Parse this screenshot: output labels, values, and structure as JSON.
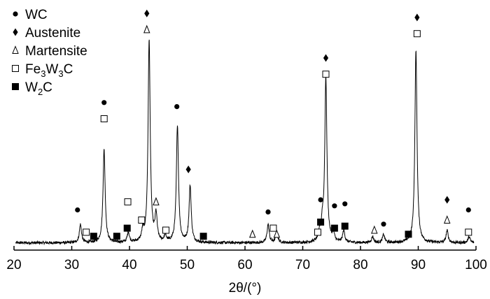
{
  "chart_data": {
    "type": "line",
    "xlabel": "2θ/(°)",
    "x_range": [
      20,
      100
    ],
    "x_ticks": [
      20,
      30,
      40,
      50,
      60,
      70,
      80,
      90,
      100
    ],
    "y_ticks_shown": false,
    "grid": false,
    "legend_position": "top-left",
    "legend": [
      {
        "phase": "wc",
        "label": "WC",
        "marker": "circle"
      },
      {
        "phase": "austenite",
        "label": "Austenite",
        "marker": "diamond"
      },
      {
        "phase": "martensite",
        "label": "Martensite",
        "marker": "triangle-open"
      },
      {
        "phase": "fe3w3c",
        "label_parts": [
          "Fe",
          "3",
          "W",
          "3",
          "C"
        ],
        "marker": "square-open"
      },
      {
        "phase": "w2c",
        "label_parts": [
          "W",
          "2",
          "C"
        ],
        "marker": "square-filled"
      }
    ],
    "baseline_intensity": 1.5,
    "peaks": [
      {
        "x": 31.5,
        "intensity": 9
      },
      {
        "x": 35.6,
        "intensity": 46
      },
      {
        "x": 39.8,
        "intensity": 5
      },
      {
        "x": 42.3,
        "intensity": 5
      },
      {
        "x": 43.4,
        "intensity": 100
      },
      {
        "x": 44.6,
        "intensity": 13
      },
      {
        "x": 46.2,
        "intensity": 3
      },
      {
        "x": 48.3,
        "intensity": 58
      },
      {
        "x": 50.5,
        "intensity": 28
      },
      {
        "x": 64.0,
        "intensity": 9
      },
      {
        "x": 65.5,
        "intensity": 5
      },
      {
        "x": 72.9,
        "intensity": 4
      },
      {
        "x": 73.4,
        "intensity": 8
      },
      {
        "x": 74.0,
        "intensity": 81
      },
      {
        "x": 75.3,
        "intensity": 4
      },
      {
        "x": 77.1,
        "intensity": 6
      },
      {
        "x": 82.1,
        "intensity": 3
      },
      {
        "x": 84.0,
        "intensity": 4
      },
      {
        "x": 89.6,
        "intensity": 95
      },
      {
        "x": 95.0,
        "intensity": 6
      },
      {
        "x": 98.8,
        "intensity": 3
      }
    ],
    "markers": [
      {
        "x": 31.0,
        "intensity": 15,
        "phase": "wc"
      },
      {
        "x": 32.5,
        "intensity": 4,
        "phase": "fe3w3c"
      },
      {
        "x": 33.8,
        "intensity": 2,
        "phase": "w2c"
      },
      {
        "x": 35.6,
        "intensity": 60,
        "phase": "fe3w3c"
      },
      {
        "x": 35.6,
        "intensity": 68,
        "phase": "wc"
      },
      {
        "x": 37.8,
        "intensity": 2,
        "phase": "w2c"
      },
      {
        "x": 39.6,
        "intensity": 6,
        "phase": "w2c"
      },
      {
        "x": 39.7,
        "intensity": 19,
        "phase": "fe3w3c"
      },
      {
        "x": 42.1,
        "intensity": 10,
        "phase": "fe3w3c"
      },
      {
        "x": 43.0,
        "intensity": 112,
        "phase": "austenite"
      },
      {
        "x": 43.0,
        "intensity": 104,
        "phase": "martensite"
      },
      {
        "x": 44.6,
        "intensity": 19,
        "phase": "martensite"
      },
      {
        "x": 46.3,
        "intensity": 5,
        "phase": "fe3w3c"
      },
      {
        "x": 48.2,
        "intensity": 66,
        "phase": "wc"
      },
      {
        "x": 50.2,
        "intensity": 35,
        "phase": "austenite"
      },
      {
        "x": 52.8,
        "intensity": 2,
        "phase": "w2c"
      },
      {
        "x": 61.3,
        "intensity": 3,
        "phase": "martensite"
      },
      {
        "x": 64.0,
        "intensity": 14,
        "phase": "wc"
      },
      {
        "x": 64.9,
        "intensity": 6,
        "phase": "fe3w3c"
      },
      {
        "x": 65.5,
        "intensity": 3,
        "phase": "martensite"
      },
      {
        "x": 72.6,
        "intensity": 4,
        "phase": "fe3w3c"
      },
      {
        "x": 73.1,
        "intensity": 9,
        "phase": "w2c"
      },
      {
        "x": 73.1,
        "intensity": 20,
        "phase": "wc"
      },
      {
        "x": 74.0,
        "intensity": 90,
        "phase": "austenite"
      },
      {
        "x": 74.0,
        "intensity": 82,
        "phase": "fe3w3c"
      },
      {
        "x": 75.5,
        "intensity": 6,
        "phase": "w2c"
      },
      {
        "x": 75.5,
        "intensity": 17,
        "phase": "wc"
      },
      {
        "x": 77.3,
        "intensity": 7,
        "phase": "w2c"
      },
      {
        "x": 77.3,
        "intensity": 18,
        "phase": "wc"
      },
      {
        "x": 82.4,
        "intensity": 5,
        "phase": "martensite"
      },
      {
        "x": 84.0,
        "intensity": 8,
        "phase": "wc"
      },
      {
        "x": 88.3,
        "intensity": 3,
        "phase": "w2c"
      },
      {
        "x": 89.8,
        "intensity": 110,
        "phase": "austenite"
      },
      {
        "x": 89.8,
        "intensity": 102,
        "phase": "fe3w3c"
      },
      {
        "x": 95.0,
        "intensity": 20,
        "phase": "austenite"
      },
      {
        "x": 95.0,
        "intensity": 10,
        "phase": "martensite"
      },
      {
        "x": 98.7,
        "intensity": 15,
        "phase": "wc"
      },
      {
        "x": 98.7,
        "intensity": 4,
        "phase": "fe3w3c"
      }
    ]
  }
}
